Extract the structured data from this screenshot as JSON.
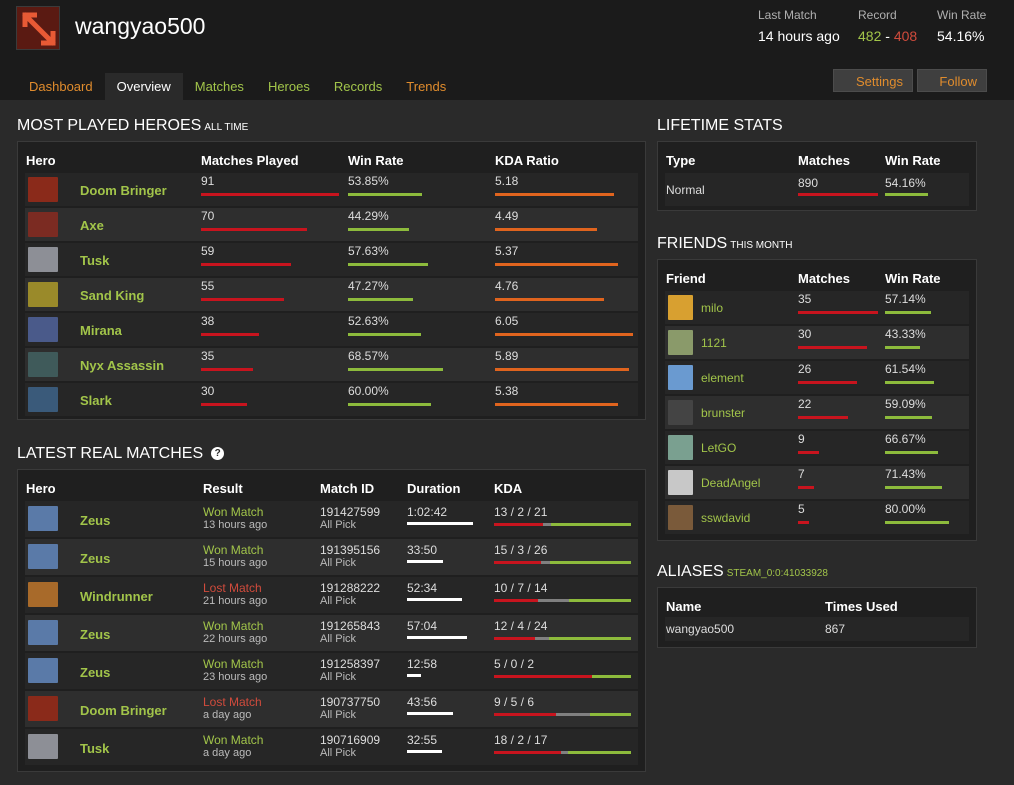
{
  "profile": {
    "name": "wangyao500"
  },
  "header_stats": {
    "last_match_label": "Last Match",
    "last_match": "14 hours ago",
    "record_label": "Record",
    "wins": "482",
    "sep": " - ",
    "losses": "408",
    "winrate_label": "Win Rate",
    "winrate": "54.16%"
  },
  "tabs": [
    "Dashboard",
    "Overview",
    "Matches",
    "Heroes",
    "Records",
    "Trends"
  ],
  "buttons": {
    "settings": "Settings",
    "follow": "Follow"
  },
  "most_played": {
    "title": "Most Played Heroes",
    "subtitle": "All Time",
    "columns": [
      "Hero",
      "Matches Played",
      "Win Rate",
      "KDA Ratio"
    ],
    "rows": [
      {
        "hero": "Doom Bringer",
        "matches": "91",
        "matches_frac": 1.0,
        "winrate": "53.85%",
        "wr_frac": 0.5385,
        "kda": "5.18",
        "kda_frac": 0.86,
        "color": "#8a2a1a"
      },
      {
        "hero": "Axe",
        "matches": "70",
        "matches_frac": 0.77,
        "winrate": "44.29%",
        "wr_frac": 0.4429,
        "kda": "4.49",
        "kda_frac": 0.74,
        "color": "#7b2b22"
      },
      {
        "hero": "Tusk",
        "matches": "59",
        "matches_frac": 0.65,
        "winrate": "57.63%",
        "wr_frac": 0.5763,
        "kda": "5.37",
        "kda_frac": 0.89,
        "color": "#8d8f96"
      },
      {
        "hero": "Sand King",
        "matches": "55",
        "matches_frac": 0.6,
        "winrate": "47.27%",
        "wr_frac": 0.4727,
        "kda": "4.76",
        "kda_frac": 0.79,
        "color": "#9a8a2a"
      },
      {
        "hero": "Mirana",
        "matches": "38",
        "matches_frac": 0.42,
        "winrate": "52.63%",
        "wr_frac": 0.5263,
        "kda": "6.05",
        "kda_frac": 1.0,
        "color": "#4a5a8a"
      },
      {
        "hero": "Nyx Assassin",
        "matches": "35",
        "matches_frac": 0.38,
        "winrate": "68.57%",
        "wr_frac": 0.6857,
        "kda": "5.89",
        "kda_frac": 0.97,
        "color": "#3f5a5a"
      },
      {
        "hero": "Slark",
        "matches": "30",
        "matches_frac": 0.33,
        "winrate": "60.00%",
        "wr_frac": 0.6,
        "kda": "5.38",
        "kda_frac": 0.89,
        "color": "#3a5a7a"
      }
    ]
  },
  "latest": {
    "title": "Latest Real Matches",
    "columns": [
      "Hero",
      "Result",
      "Match ID",
      "Duration",
      "KDA"
    ],
    "rows": [
      {
        "hero": "Zeus",
        "result": "Won Match",
        "won": true,
        "ago": "13 hours ago",
        "id": "191427599",
        "mode": "All Pick",
        "duration": "1:02:42",
        "dur_frac": 1.0,
        "kda": "13 / 2 / 21",
        "k": 13,
        "d": 2,
        "a": 21,
        "color": "#5a7aa8"
      },
      {
        "hero": "Zeus",
        "result": "Won Match",
        "won": true,
        "ago": "15 hours ago",
        "id": "191395156",
        "mode": "All Pick",
        "duration": "33:50",
        "dur_frac": 0.54,
        "kda": "15 / 3 / 26",
        "k": 15,
        "d": 3,
        "a": 26,
        "color": "#5a7aa8"
      },
      {
        "hero": "Windrunner",
        "result": "Lost Match",
        "won": false,
        "ago": "21 hours ago",
        "id": "191288222",
        "mode": "All Pick",
        "duration": "52:34",
        "dur_frac": 0.84,
        "kda": "10 / 7 / 14",
        "k": 10,
        "d": 7,
        "a": 14,
        "color": "#a86a2a"
      },
      {
        "hero": "Zeus",
        "result": "Won Match",
        "won": true,
        "ago": "22 hours ago",
        "id": "191265843",
        "mode": "All Pick",
        "duration": "57:04",
        "dur_frac": 0.91,
        "kda": "12 / 4 / 24",
        "k": 12,
        "d": 4,
        "a": 24,
        "color": "#5a7aa8"
      },
      {
        "hero": "Zeus",
        "result": "Won Match",
        "won": true,
        "ago": "23 hours ago",
        "id": "191258397",
        "mode": "All Pick",
        "duration": "12:58",
        "dur_frac": 0.21,
        "kda": "5 / 0 / 2",
        "k": 5,
        "d": 0,
        "a": 2,
        "color": "#5a7aa8"
      },
      {
        "hero": "Doom Bringer",
        "result": "Lost Match",
        "won": false,
        "ago": "a day ago",
        "id": "190737750",
        "mode": "All Pick",
        "duration": "43:56",
        "dur_frac": 0.7,
        "kda": "9 / 5 / 6",
        "k": 9,
        "d": 5,
        "a": 6,
        "color": "#8a2a1a"
      },
      {
        "hero": "Tusk",
        "result": "Won Match",
        "won": true,
        "ago": "a day ago",
        "id": "190716909",
        "mode": "All Pick",
        "duration": "32:55",
        "dur_frac": 0.53,
        "kda": "18 / 2 / 17",
        "k": 18,
        "d": 2,
        "a": 17,
        "color": "#8d8f96"
      }
    ]
  },
  "lifetime": {
    "title": "Lifetime Stats",
    "columns": [
      "Type",
      "Matches",
      "Win Rate"
    ],
    "rows": [
      {
        "type": "Normal",
        "matches": "890",
        "matches_frac": 1.0,
        "winrate": "54.16%",
        "wr_frac": 0.5416
      }
    ]
  },
  "friends": {
    "title": "Friends",
    "subtitle": "This Month",
    "columns": [
      "Friend",
      "Matches",
      "Win Rate"
    ],
    "rows": [
      {
        "name": "milo",
        "matches": "35",
        "matches_frac": 1.0,
        "winrate": "57.14%",
        "wr_frac": 0.5714,
        "color": "#d8a030"
      },
      {
        "name": "1121",
        "matches": "30",
        "matches_frac": 0.86,
        "winrate": "43.33%",
        "wr_frac": 0.4333,
        "color": "#8a9a6a"
      },
      {
        "name": "element",
        "matches": "26",
        "matches_frac": 0.74,
        "winrate": "61.54%",
        "wr_frac": 0.6154,
        "color": "#6a9ad0"
      },
      {
        "name": "brunster",
        "matches": "22",
        "matches_frac": 0.63,
        "winrate": "59.09%",
        "wr_frac": 0.5909,
        "color": "#444444"
      },
      {
        "name": "LetGO",
        "matches": "9",
        "matches_frac": 0.26,
        "winrate": "66.67%",
        "wr_frac": 0.6667,
        "color": "#7aa090"
      },
      {
        "name": "DeadAngel",
        "matches": "7",
        "matches_frac": 0.2,
        "winrate": "71.43%",
        "wr_frac": 0.7143,
        "color": "#c8c8c8"
      },
      {
        "name": "sswdavid",
        "matches": "5",
        "matches_frac": 0.14,
        "winrate": "80.00%",
        "wr_frac": 0.8,
        "color": "#7a5a3a"
      }
    ]
  },
  "aliases": {
    "title": "Aliases",
    "steam_id": "STEAM_0:0:41033928",
    "columns": [
      "Name",
      "Times Used"
    ],
    "rows": [
      {
        "name": "wangyao500",
        "times": "867"
      }
    ]
  },
  "colors": {
    "accent_green": "#a2c54a",
    "accent_orange": "#e08c2d",
    "loss_red": "#d04b3c",
    "bar_red": "#c8141e",
    "bar_green": "#8dbb3c",
    "bar_orange": "#e0641e",
    "bar_grey": "#808080"
  }
}
